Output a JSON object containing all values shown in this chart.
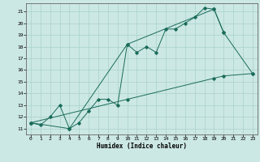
{
  "bg_color": "#cce8e4",
  "grid_color": "#aed4cf",
  "line_color": "#1a6b5a",
  "xlim": [
    -0.5,
    23.5
  ],
  "ylim": [
    10.5,
    21.7
  ],
  "xticks": [
    0,
    1,
    2,
    3,
    4,
    5,
    6,
    7,
    8,
    9,
    10,
    11,
    12,
    13,
    14,
    15,
    16,
    17,
    18,
    19,
    20,
    21,
    22,
    23
  ],
  "yticks": [
    11,
    12,
    13,
    14,
    15,
    16,
    17,
    18,
    19,
    20,
    21
  ],
  "xlabel": "Humidex (Indice chaleur)",
  "series": [
    {
      "x": [
        0,
        1,
        2,
        3,
        4,
        5,
        6,
        7,
        8,
        9,
        10,
        11,
        12,
        13,
        14,
        15,
        16,
        17,
        18,
        19,
        20
      ],
      "y": [
        11.5,
        11.3,
        12.0,
        13.0,
        11.0,
        11.5,
        12.5,
        13.5,
        13.5,
        13.0,
        18.2,
        17.5,
        18.0,
        17.5,
        19.5,
        19.5,
        20.0,
        20.5,
        21.3,
        21.2,
        19.2
      ]
    },
    {
      "x": [
        0,
        4,
        10,
        19,
        20,
        23
      ],
      "y": [
        11.5,
        11.0,
        18.2,
        21.2,
        19.2,
        15.7
      ]
    },
    {
      "x": [
        0,
        10,
        19,
        20,
        23
      ],
      "y": [
        11.5,
        13.5,
        15.3,
        15.5,
        15.7
      ]
    }
  ]
}
